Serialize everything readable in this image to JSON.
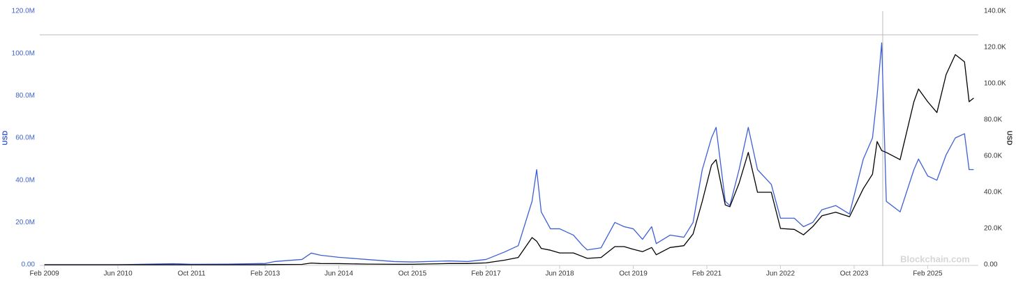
{
  "chart_data": {
    "type": "line",
    "x": [
      "2009-02",
      "2010-06",
      "2011-06",
      "2011-10",
      "2012-06",
      "2013-02",
      "2013-04",
      "2013-10",
      "2013-12",
      "2014-02",
      "2014-06",
      "2014-12",
      "2015-06",
      "2015-10",
      "2016-06",
      "2016-10",
      "2017-02",
      "2017-06",
      "2017-09",
      "2017-12",
      "2018-01",
      "2018-02",
      "2018-04",
      "2018-06",
      "2018-09",
      "2018-11",
      "2018-12",
      "2019-03",
      "2019-06",
      "2019-08",
      "2019-10",
      "2019-12",
      "2020-02",
      "2020-03",
      "2020-06",
      "2020-09",
      "2020-11",
      "2021-01",
      "2021-03",
      "2021-04",
      "2021-06",
      "2021-07",
      "2021-09",
      "2021-11",
      "2022-01",
      "2022-04",
      "2022-06",
      "2022-09",
      "2022-11",
      "2023-01",
      "2023-03",
      "2023-06",
      "2023-09",
      "2023-12",
      "2024-02",
      "2024-03",
      "2024-04",
      "2024-05",
      "2024-08",
      "2024-11",
      "2024-12",
      "2025-02",
      "2025-04",
      "2025-06",
      "2025-08",
      "2025-10",
      "2025-11",
      "2025-12"
    ],
    "series": [
      {
        "color": "#3d5fd6",
        "values": [
          0,
          0,
          500000,
          200000,
          300000,
          600000,
          1500000,
          2500000,
          5500000,
          4500000,
          3500000,
          2500000,
          1500000,
          1300000,
          1800000,
          1500000,
          2500000,
          6000000,
          9000000,
          30000000,
          45000000,
          25000000,
          17000000,
          17000000,
          14000000,
          9000000,
          7000000,
          8000000,
          20000000,
          18000000,
          17000000,
          12000000,
          18000000,
          10000000,
          14000000,
          13000000,
          20000000,
          45000000,
          60000000,
          65000000,
          30000000,
          28000000,
          45000000,
          65000000,
          45000000,
          38000000,
          22000000,
          22000000,
          18000000,
          20000000,
          26000000,
          28000000,
          24000000,
          50000000,
          60000000,
          80000000,
          105000000,
          30000000,
          25000000,
          45000000,
          50000000,
          42000000,
          40000000,
          52000000,
          60000000,
          62000000,
          45000000,
          45000000
        ]
      },
      {
        "color": "#000000",
        "axis": "y2",
        "values": [
          0,
          0,
          15,
          4,
          6,
          30,
          120,
          200,
          900,
          650,
          600,
          330,
          230,
          250,
          650,
          650,
          1000,
          2500,
          4000,
          15000,
          13000,
          9000,
          8000,
          6500,
          6500,
          4500,
          3500,
          4000,
          10000,
          10000,
          8500,
          7200,
          9500,
          5500,
          9500,
          10500,
          17000,
          35000,
          55000,
          58000,
          33000,
          32000,
          45000,
          62000,
          40000,
          40000,
          20000,
          19500,
          16500,
          21000,
          27000,
          29000,
          26500,
          42000,
          50000,
          68000,
          63000,
          62000,
          58000,
          90000,
          97000,
          90000,
          84000,
          105000,
          116000,
          112000,
          90000,
          92000
        ]
      }
    ],
    "xlim": [
      "2009-01",
      "2026-01"
    ],
    "xticks": [
      {
        "value": "2009-02",
        "label": "Feb 2009"
      },
      {
        "value": "2010-06",
        "label": "Jun 2010"
      },
      {
        "value": "2011-10",
        "label": "Oct 2011"
      },
      {
        "value": "2013-02",
        "label": "Feb 2013"
      },
      {
        "value": "2014-06",
        "label": "Jun 2014"
      },
      {
        "value": "2015-10",
        "label": "Oct 2015"
      },
      {
        "value": "2017-02",
        "label": "Feb 2017"
      },
      {
        "value": "2018-06",
        "label": "Jun 2018"
      },
      {
        "value": "2019-10",
        "label": "Oct 2019"
      },
      {
        "value": "2021-02",
        "label": "Feb 2021"
      },
      {
        "value": "2022-06",
        "label": "Jun 2022"
      },
      {
        "value": "2023-10",
        "label": "Oct 2023"
      },
      {
        "value": "2025-02",
        "label": "Feb 2025"
      }
    ],
    "ylim": [
      0,
      120000000
    ],
    "yticks": [
      {
        "value": 0,
        "label": "0.00"
      },
      {
        "value": 20000000,
        "label": "20.0M"
      },
      {
        "value": 40000000,
        "label": "40.0M"
      },
      {
        "value": 60000000,
        "label": "60.0M"
      },
      {
        "value": 80000000,
        "label": "80.0M"
      },
      {
        "value": 100000000,
        "label": "100.0M"
      },
      {
        "value": 120000000,
        "label": "120.0M"
      }
    ],
    "y2lim": [
      0,
      140000
    ],
    "y2ticks": [
      {
        "value": 0,
        "label": "0.00"
      },
      {
        "value": 20000,
        "label": "20.0K"
      },
      {
        "value": 40000,
        "label": "40.0K"
      },
      {
        "value": 60000,
        "label": "60.0K"
      },
      {
        "value": 80000,
        "label": "80.0K"
      },
      {
        "value": 100000,
        "label": "100.0K"
      },
      {
        "value": 120000,
        "label": "120.0K"
      },
      {
        "value": 140000,
        "label": "140.0K"
      }
    ],
    "ylabel": "USD",
    "y2label": "USD",
    "watermark": "Blockchain.com"
  }
}
